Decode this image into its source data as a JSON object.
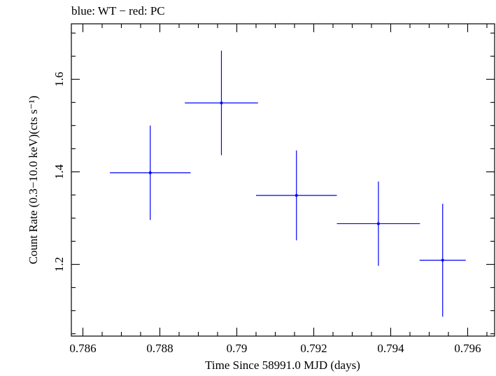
{
  "chart_data": {
    "type": "scatter",
    "title": "blue: WT − red: PC",
    "xlabel": "Time Since 58991.0 MJD (days)",
    "ylabel": "Count Rate (0.3−10.0 keV)(cts s⁻¹)",
    "xlim": [
      0.7857,
      0.7967
    ],
    "ylim": [
      1.045,
      1.72
    ],
    "x_ticks": [
      0.786,
      0.788,
      0.79,
      0.792,
      0.794,
      0.796
    ],
    "x_tick_labels": [
      "0.786",
      "0.788",
      "0.79",
      "0.792",
      "0.794",
      "0.796"
    ],
    "y_ticks": [
      1.2,
      1.4,
      1.6
    ],
    "y_tick_labels": [
      "1.2",
      "1.4",
      "1.6"
    ],
    "grid": false,
    "series": [
      {
        "color": "#0000ff",
        "points": [
          {
            "x": 0.78775,
            "y": 1.398,
            "xerr": 0.00105,
            "yerr": 0.102
          },
          {
            "x": 0.7896,
            "y": 1.549,
            "xerr": 0.00095,
            "yerr": 0.113
          },
          {
            "x": 0.79155,
            "y": 1.349,
            "xerr": 0.00105,
            "yerr": 0.097
          },
          {
            "x": 0.79368,
            "y": 1.288,
            "xerr": 0.00108,
            "yerr": 0.091
          },
          {
            "x": 0.79535,
            "y": 1.209,
            "xerr": 0.0006,
            "yerr": 0.122
          }
        ]
      }
    ]
  }
}
